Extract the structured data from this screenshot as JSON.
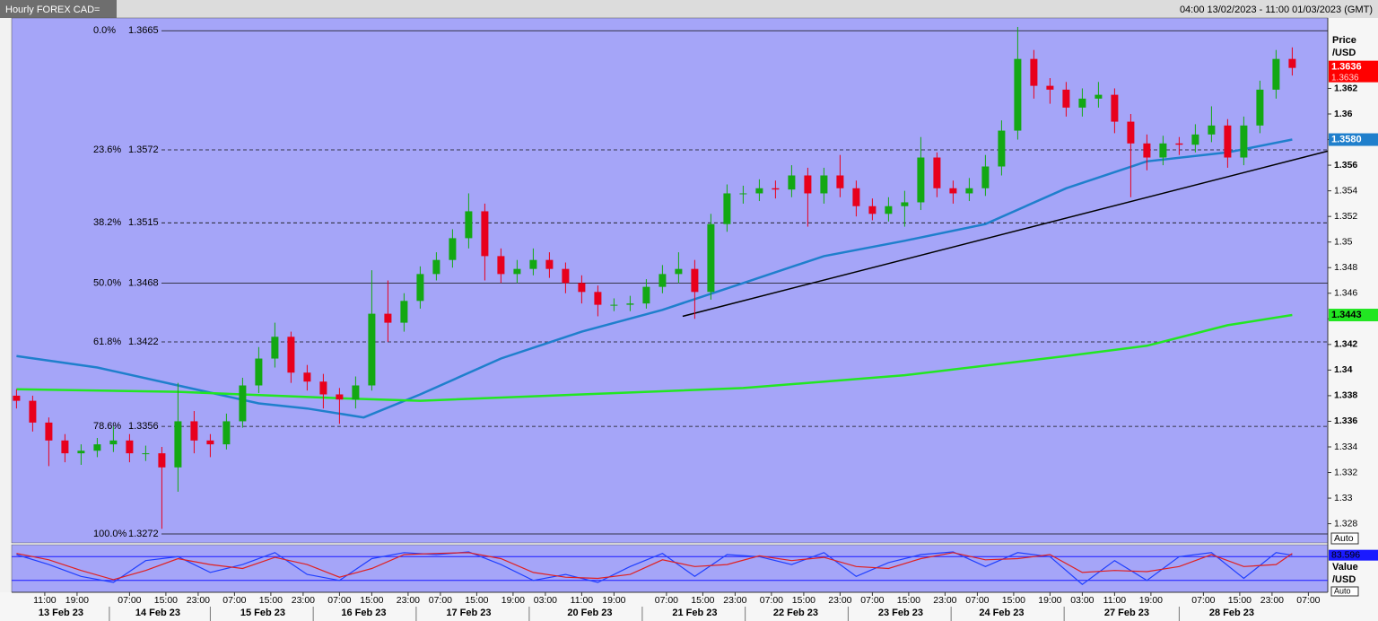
{
  "header": {
    "title": "Hourly FOREX CAD=",
    "range": "04:00 13/02/2023 - 11:00 01/03/2023 (GMT)"
  },
  "chart_data": [
    {
      "type": "candlestick",
      "x": [
        0,
        4,
        8,
        12,
        16,
        20,
        24,
        28,
        32,
        36,
        40,
        44,
        48,
        52,
        56,
        60,
        64,
        68,
        72,
        76,
        80,
        84,
        88,
        92,
        96,
        100,
        104,
        108,
        112,
        116,
        120,
        124,
        128,
        132,
        136,
        140,
        144,
        148,
        152,
        156,
        160,
        164,
        168,
        172,
        176,
        180,
        184,
        188,
        192,
        196,
        200,
        204,
        208,
        212,
        216,
        220,
        224,
        228,
        232,
        236,
        240,
        244,
        248,
        252,
        256,
        260,
        264,
        268,
        272,
        276,
        280,
        284,
        288,
        292,
        296,
        300,
        304,
        308,
        312,
        316
      ],
      "open": [
        1.338,
        1.3376,
        1.3359,
        1.3345,
        1.3335,
        1.3337,
        1.3342,
        1.3345,
        1.3335,
        1.3335,
        1.3324,
        1.336,
        1.3345,
        1.3342,
        1.336,
        1.3388,
        1.3409,
        1.3426,
        1.3398,
        1.3391,
        1.3381,
        1.3377,
        1.3388,
        1.3444,
        1.3437,
        1.3454,
        1.3475,
        1.3486,
        1.3503,
        1.3524,
        1.3489,
        1.3475,
        1.3479,
        1.3486,
        1.3479,
        1.3468,
        1.3461,
        1.3451,
        1.3451,
        1.3452,
        1.3465,
        1.3475,
        1.3479,
        1.3461,
        1.3514,
        1.3538,
        1.3538,
        1.3542,
        1.3541,
        1.3552,
        1.3538,
        1.3552,
        1.3542,
        1.3528,
        1.3522,
        1.3528,
        1.3531,
        1.3566,
        1.3542,
        1.3538,
        1.3542,
        1.3559,
        1.3587,
        1.3643,
        1.3622,
        1.3619,
        1.3605,
        1.3612,
        1.3615,
        1.3594,
        1.3577,
        1.3566,
        1.3577,
        1.3576,
        1.3584,
        1.3591,
        1.3566,
        1.3591,
        1.3619,
        1.3643
      ],
      "high": [
        1.3385,
        1.338,
        1.3363,
        1.335,
        1.3342,
        1.3347,
        1.3356,
        1.335,
        1.3341,
        1.334,
        1.339,
        1.3368,
        1.335,
        1.3366,
        1.3394,
        1.3418,
        1.3437,
        1.343,
        1.3404,
        1.3397,
        1.3386,
        1.3395,
        1.3478,
        1.347,
        1.346,
        1.3481,
        1.3492,
        1.351,
        1.3538,
        1.353,
        1.3495,
        1.3486,
        1.3495,
        1.3492,
        1.3484,
        1.3474,
        1.3466,
        1.3456,
        1.3458,
        1.3471,
        1.3482,
        1.3492,
        1.3486,
        1.3522,
        1.3545,
        1.3544,
        1.3549,
        1.3548,
        1.356,
        1.3558,
        1.3558,
        1.3568,
        1.3548,
        1.3534,
        1.3535,
        1.354,
        1.3582,
        1.357,
        1.3548,
        1.355,
        1.3568,
        1.3595,
        1.3668,
        1.365,
        1.3628,
        1.3625,
        1.362,
        1.3625,
        1.362,
        1.36,
        1.3584,
        1.3583,
        1.3582,
        1.3592,
        1.3606,
        1.3596,
        1.3598,
        1.3626,
        1.365,
        1.3652
      ],
      "low": [
        1.337,
        1.3352,
        1.3325,
        1.3328,
        1.3326,
        1.3332,
        1.3336,
        1.3328,
        1.3329,
        1.3276,
        1.3305,
        1.3335,
        1.3332,
        1.3338,
        1.3355,
        1.3382,
        1.3402,
        1.339,
        1.3384,
        1.337,
        1.3358,
        1.337,
        1.3384,
        1.3422,
        1.343,
        1.3448,
        1.347,
        1.348,
        1.3495,
        1.347,
        1.3468,
        1.3468,
        1.3474,
        1.3472,
        1.346,
        1.3452,
        1.3442,
        1.3446,
        1.3446,
        1.3448,
        1.346,
        1.3468,
        1.344,
        1.3455,
        1.3508,
        1.353,
        1.3532,
        1.3534,
        1.3535,
        1.3512,
        1.353,
        1.3535,
        1.352,
        1.3517,
        1.3516,
        1.3512,
        1.3525,
        1.3535,
        1.353,
        1.3532,
        1.3536,
        1.3552,
        1.358,
        1.3612,
        1.3608,
        1.3598,
        1.3598,
        1.3605,
        1.3585,
        1.3535,
        1.3556,
        1.356,
        1.3568,
        1.357,
        1.3578,
        1.3558,
        1.356,
        1.3585,
        1.3612,
        1.363
      ],
      "close": [
        1.3376,
        1.3359,
        1.3345,
        1.3335,
        1.3337,
        1.3342,
        1.3345,
        1.3335,
        1.3335,
        1.3324,
        1.336,
        1.3345,
        1.3342,
        1.336,
        1.3388,
        1.3409,
        1.3426,
        1.3398,
        1.3391,
        1.3381,
        1.3377,
        1.3388,
        1.3444,
        1.3437,
        1.3454,
        1.3475,
        1.3486,
        1.3503,
        1.3524,
        1.3489,
        1.3475,
        1.3479,
        1.3486,
        1.3479,
        1.3468,
        1.3461,
        1.3451,
        1.3451,
        1.3452,
        1.3465,
        1.3475,
        1.3479,
        1.3461,
        1.3514,
        1.3538,
        1.3538,
        1.3542,
        1.3541,
        1.3552,
        1.3538,
        1.3552,
        1.3542,
        1.3528,
        1.3522,
        1.3528,
        1.3531,
        1.3566,
        1.3542,
        1.3538,
        1.3542,
        1.3559,
        1.3587,
        1.3643,
        1.3622,
        1.3619,
        1.3605,
        1.3612,
        1.3615,
        1.3594,
        1.3577,
        1.3566,
        1.3577,
        1.3576,
        1.3584,
        1.3591,
        1.3566,
        1.3591,
        1.3619,
        1.3643,
        1.3636
      ],
      "up_color": "#13a813",
      "down_color": "#e8001c",
      "xlim": [
        -1.2,
        324.8
      ],
      "ylim": [
        1.3265,
        1.3675
      ],
      "yticks": [
        1.328,
        1.33,
        1.332,
        1.334,
        1.336,
        1.338,
        1.34,
        1.342,
        1.344,
        1.346,
        1.348,
        1.35,
        1.352,
        1.354,
        1.356,
        1.358,
        1.36,
        1.362
      ],
      "xticks": [
        {
          "value": 7,
          "label": "11:00"
        },
        {
          "value": 15,
          "label": "19:00"
        },
        {
          "value": 28,
          "label": "07:00"
        },
        {
          "value": 37,
          "label": "15:00"
        },
        {
          "value": 45,
          "label": "23:00"
        },
        {
          "value": 54,
          "label": "07:00"
        },
        {
          "value": 63,
          "label": "15:00"
        },
        {
          "value": 71,
          "label": "23:00"
        },
        {
          "value": 80,
          "label": "07:00"
        },
        {
          "value": 88,
          "label": "15:00"
        },
        {
          "value": 97,
          "label": "23:00"
        },
        {
          "value": 105,
          "label": "07:00"
        },
        {
          "value": 114,
          "label": "15:00"
        },
        {
          "value": 123,
          "label": "19:00"
        },
        {
          "value": 131,
          "label": "03:00"
        },
        {
          "value": 140,
          "label": "11:00"
        },
        {
          "value": 148,
          "label": "19:00"
        },
        {
          "value": 161,
          "label": "07:00"
        },
        {
          "value": 170,
          "label": "15:00"
        },
        {
          "value": 178,
          "label": "23:00"
        },
        {
          "value": 187,
          "label": "07:00"
        },
        {
          "value": 195,
          "label": "15:00"
        },
        {
          "value": 204,
          "label": "23:00"
        },
        {
          "value": 212,
          "label": "07:00"
        },
        {
          "value": 221,
          "label": "15:00"
        },
        {
          "value": 230,
          "label": "23:00"
        },
        {
          "value": 238,
          "label": "07:00"
        },
        {
          "value": 247,
          "label": "15:00"
        },
        {
          "value": 256,
          "label": "19:00"
        },
        {
          "value": 264,
          "label": "03:00"
        },
        {
          "value": 272,
          "label": "11:00"
        },
        {
          "value": 281,
          "label": "19:00"
        },
        {
          "value": 294,
          "label": "07:00"
        },
        {
          "value": 303,
          "label": "15:00"
        },
        {
          "value": 311,
          "label": "23:00"
        },
        {
          "value": 320,
          "label": "07:00"
        }
      ],
      "date_labels": [
        {
          "value": 11,
          "label": "13 Feb 23"
        },
        {
          "value": 35,
          "label": "14 Feb 23"
        },
        {
          "value": 61,
          "label": "15 Feb 23"
        },
        {
          "value": 86,
          "label": "16 Feb 23"
        },
        {
          "value": 112,
          "label": "17 Feb 23"
        },
        {
          "value": 142,
          "label": "20 Feb 23"
        },
        {
          "value": 168,
          "label": "21 Feb 23"
        },
        {
          "value": 193,
          "label": "22 Feb 23"
        },
        {
          "value": 219,
          "label": "23 Feb 23"
        },
        {
          "value": 244,
          "label": "24 Feb 23"
        },
        {
          "value": 275,
          "label": "27 Feb 23"
        },
        {
          "value": 301,
          "label": "28 Feb 23"
        }
      ],
      "lines": [
        {
          "color": "#1f7fcc",
          "x": [
            0,
            20,
            40,
            60,
            72,
            86,
            100,
            120,
            140,
            160,
            180,
            200,
            220,
            240,
            260,
            280,
            300,
            316
          ],
          "values": [
            1.3411,
            1.3402,
            1.3388,
            1.3374,
            1.337,
            1.3363,
            1.3381,
            1.3409,
            1.343,
            1.3447,
            1.3468,
            1.3489,
            1.3501,
            1.3514,
            1.3542,
            1.3563,
            1.357,
            1.358
          ],
          "end_label": "1.3580"
        },
        {
          "color": "#22e622",
          "x": [
            0,
            40,
            80,
            100,
            140,
            180,
            220,
            260,
            280,
            300,
            316
          ],
          "values": [
            1.3385,
            1.3383,
            1.3378,
            1.3376,
            1.3381,
            1.3386,
            1.3396,
            1.3411,
            1.3419,
            1.3435,
            1.3443
          ]
        }
      ],
      "fibonacci": [
        {
          "label": "0.0%",
          "value": 1.3665,
          "style": "solid"
        },
        {
          "label": "23.6%",
          "value": 1.3572,
          "style": "dashed"
        },
        {
          "label": "38.2%",
          "value": 1.3515,
          "style": "dashed"
        },
        {
          "label": "50.0%",
          "value": 1.3468,
          "style": "solid"
        },
        {
          "label": "61.8%",
          "value": 1.3422,
          "style": "dashed"
        },
        {
          "label": "78.6%",
          "value": 1.3356,
          "style": "dashed"
        },
        {
          "label": "100.0%",
          "value": 1.3272,
          "style": "solid"
        }
      ],
      "trendline": {
        "x": [
          165,
          324.8
        ],
        "values": [
          1.3442,
          1.3571
        ]
      },
      "price_label": "Price",
      "price_unit": "/USD",
      "scale_mode": "Auto"
    },
    {
      "type": "stochastic",
      "xlim": [
        -1.2,
        324.8
      ],
      "ylim": [
        -10,
        110
      ],
      "levels": [
        20,
        80
      ],
      "x": [
        0,
        8,
        16,
        24,
        32,
        40,
        48,
        56,
        64,
        72,
        80,
        88,
        96,
        104,
        112,
        120,
        128,
        136,
        144,
        152,
        160,
        168,
        176,
        184,
        192,
        200,
        208,
        216,
        224,
        232,
        240,
        248,
        256,
        264,
        272,
        280,
        288,
        296,
        304,
        312,
        316
      ],
      "series": [
        {
          "color": "#1f3fff",
          "values": [
            85,
            60,
            30,
            15,
            70,
            80,
            40,
            60,
            90,
            35,
            20,
            75,
            90,
            85,
            92,
            60,
            20,
            35,
            15,
            55,
            88,
            30,
            85,
            80,
            60,
            90,
            30,
            65,
            85,
            92,
            55,
            90,
            80,
            10,
            70,
            20,
            80,
            90,
            25,
            90,
            83.596
          ]
        },
        {
          "color": "#e02020",
          "values": [
            88,
            72,
            45,
            22,
            45,
            75,
            60,
            50,
            78,
            60,
            28,
            50,
            85,
            88,
            90,
            75,
            40,
            28,
            25,
            35,
            72,
            55,
            60,
            82,
            70,
            78,
            55,
            50,
            75,
            90,
            72,
            75,
            85,
            40,
            45,
            42,
            55,
            85,
            55,
            60,
            88
          ]
        }
      ],
      "value_label": "Value",
      "value_unit": "/USD",
      "scale_mode": "Auto"
    }
  ]
}
